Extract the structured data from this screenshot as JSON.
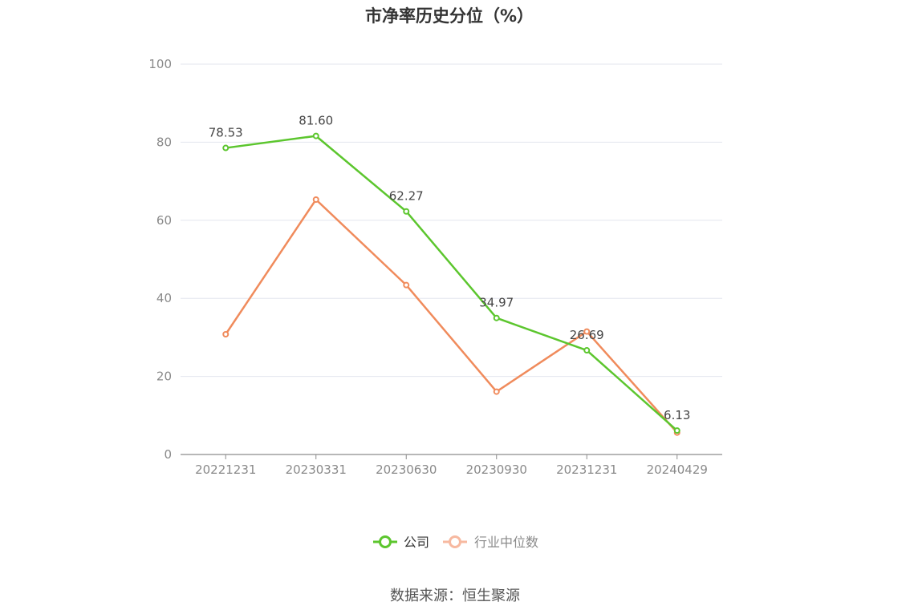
{
  "chart_data": {
    "type": "line",
    "title": "市净率历史分位（%）",
    "categories": [
      "20221231",
      "20230331",
      "20230630",
      "20230930",
      "20231231",
      "20240429"
    ],
    "series": [
      {
        "name": "公司",
        "color": "#5cc62e",
        "values": [
          78.53,
          81.6,
          62.27,
          34.97,
          26.69,
          6.13
        ],
        "labels": [
          "78.53",
          "81.60",
          "62.27",
          "34.97",
          "26.69",
          "6.13"
        ]
      },
      {
        "name": "行业中位数",
        "color": "#f08b5c",
        "legend_color": "#f7b9a0",
        "values": [
          30.8,
          65.3,
          43.4,
          16.1,
          31.5,
          5.6
        ]
      }
    ],
    "y_ticks": [
      "0",
      "20",
      "40",
      "60",
      "80",
      "100"
    ],
    "ylim": [
      0,
      100
    ],
    "grid": true,
    "legend_position": "bottom"
  },
  "footer": {
    "source": "数据来源：恒生聚源"
  }
}
